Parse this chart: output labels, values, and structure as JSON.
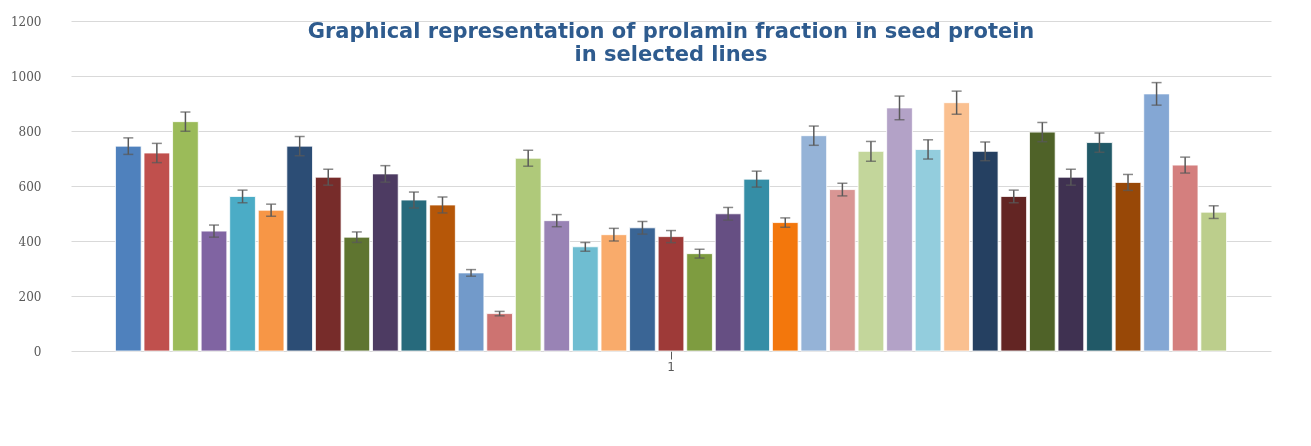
{
  "chart_data": {
    "type": "bar",
    "title": "Graphical representation of prolamin fraction in seed protein\nin selected lines",
    "categories": [
      "1"
    ],
    "series": [
      {
        "color": "#4f81bd",
        "values": [
          745
        ],
        "errors": [
          30
        ]
      },
      {
        "color": "#c0504d",
        "values": [
          720
        ],
        "errors": [
          35
        ]
      },
      {
        "color": "#9bbb59",
        "values": [
          834
        ],
        "errors": [
          35
        ]
      },
      {
        "color": "#8064a2",
        "values": [
          436
        ],
        "errors": [
          22
        ]
      },
      {
        "color": "#4bacc6",
        "values": [
          562
        ],
        "errors": [
          23
        ]
      },
      {
        "color": "#f79646",
        "values": [
          512
        ],
        "errors": [
          22
        ]
      },
      {
        "color": "#2c4d75",
        "values": [
          745
        ],
        "errors": [
          35
        ]
      },
      {
        "color": "#772c2a",
        "values": [
          632
        ],
        "errors": [
          29
        ]
      },
      {
        "color": "#5f7530",
        "values": [
          414
        ],
        "errors": [
          19
        ]
      },
      {
        "color": "#4d3b62",
        "values": [
          644
        ],
        "errors": [
          30
        ]
      },
      {
        "color": "#276a7c",
        "values": [
          549
        ],
        "errors": [
          29
        ]
      },
      {
        "color": "#b65708",
        "values": [
          531
        ],
        "errors": [
          29
        ]
      },
      {
        "color": "#729aca",
        "values": [
          284
        ],
        "errors": [
          12
        ]
      },
      {
        "color": "#cd7371",
        "values": [
          136
        ],
        "errors": [
          8
        ]
      },
      {
        "color": "#afc97a",
        "values": [
          701
        ],
        "errors": [
          29
        ]
      },
      {
        "color": "#9983b5",
        "values": [
          474
        ],
        "errors": [
          22
        ]
      },
      {
        "color": "#6fbdd1",
        "values": [
          379
        ],
        "errors": [
          16
        ]
      },
      {
        "color": "#f9ab6b",
        "values": [
          423
        ],
        "errors": [
          23
        ]
      },
      {
        "color": "#3a6595",
        "values": [
          448
        ],
        "errors": [
          23
        ]
      },
      {
        "color": "#9e3a38",
        "values": [
          416
        ],
        "errors": [
          22
        ]
      },
      {
        "color": "#7e9c40",
        "values": [
          354
        ],
        "errors": [
          16
        ]
      },
      {
        "color": "#664f83",
        "values": [
          499
        ],
        "errors": [
          23
        ]
      },
      {
        "color": "#358ea6",
        "values": [
          625
        ],
        "errors": [
          29
        ]
      },
      {
        "color": "#f3770c",
        "values": [
          467
        ],
        "errors": [
          17
        ]
      },
      {
        "color": "#95b3d7",
        "values": [
          783
        ],
        "errors": [
          35
        ]
      },
      {
        "color": "#d99694",
        "values": [
          587
        ],
        "errors": [
          23
        ]
      },
      {
        "color": "#c3d69b",
        "values": [
          726
        ],
        "errors": [
          36
        ]
      },
      {
        "color": "#b3a2c7",
        "values": [
          884
        ],
        "errors": [
          43
        ]
      },
      {
        "color": "#93cddd",
        "values": [
          733
        ],
        "errors": [
          35
        ]
      },
      {
        "color": "#fac090",
        "values": [
          903
        ],
        "errors": [
          42
        ]
      },
      {
        "color": "#254061",
        "values": [
          726
        ],
        "errors": [
          34
        ]
      },
      {
        "color": "#632523",
        "values": [
          562
        ],
        "errors": [
          23
        ]
      },
      {
        "color": "#4f6228",
        "values": [
          796
        ],
        "errors": [
          35
        ]
      },
      {
        "color": "#3f3151",
        "values": [
          632
        ],
        "errors": [
          29
        ]
      },
      {
        "color": "#215967",
        "values": [
          758
        ],
        "errors": [
          35
        ]
      },
      {
        "color": "#984807",
        "values": [
          613
        ],
        "errors": [
          29
        ]
      },
      {
        "color": "#84a7d4",
        "values": [
          935
        ],
        "errors": [
          41
        ]
      },
      {
        "color": "#d47f7e",
        "values": [
          676
        ],
        "errors": [
          29
        ]
      },
      {
        "color": "#bcce8c",
        "values": [
          505
        ],
        "errors": [
          23
        ]
      }
    ],
    "ylim": [
      0,
      1200
    ],
    "yticks": [
      0,
      200,
      400,
      600,
      800,
      1000,
      1200
    ],
    "grid": "y",
    "legend": false
  }
}
